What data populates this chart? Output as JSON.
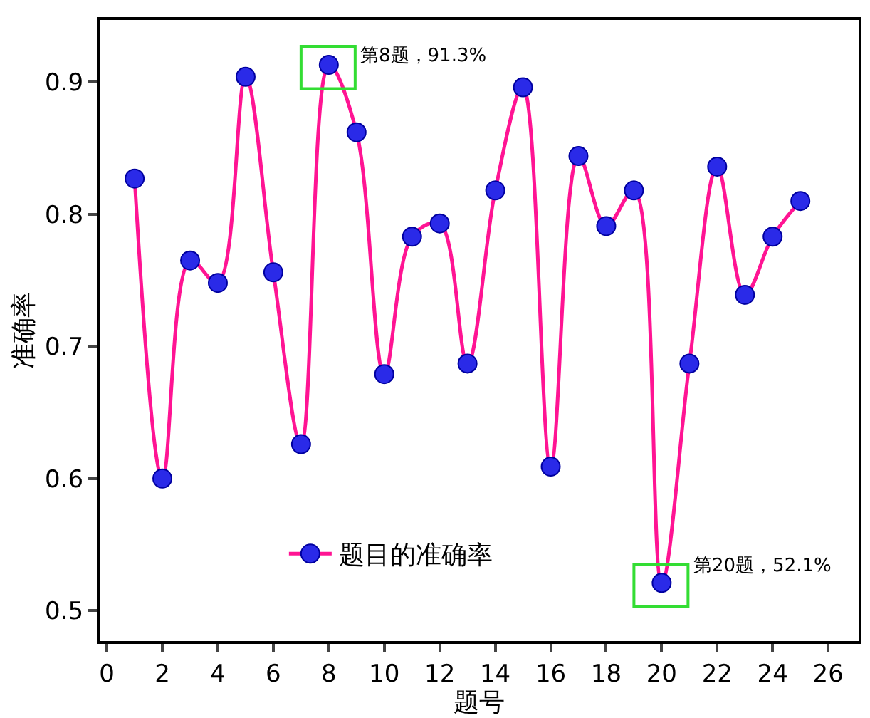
{
  "chart_data": {
    "type": "line",
    "xlabel": "题号",
    "ylabel": "准确率",
    "x": [
      1,
      2,
      3,
      4,
      5,
      6,
      7,
      8,
      9,
      10,
      11,
      12,
      13,
      14,
      15,
      16,
      17,
      18,
      19,
      20,
      21,
      22,
      23,
      24,
      25
    ],
    "series": [
      {
        "name": "题目的准确率",
        "color": "#ff1493",
        "values": [
          0.827,
          0.6,
          0.765,
          0.748,
          0.904,
          0.756,
          0.626,
          0.913,
          0.862,
          0.679,
          0.783,
          0.793,
          0.687,
          0.818,
          0.896,
          0.609,
          0.844,
          0.791,
          0.818,
          0.521,
          0.687,
          0.836,
          0.739,
          0.783,
          0.81
        ]
      }
    ],
    "annotations": [
      {
        "text": "第8题，91.3%",
        "x": 8,
        "y": 0.913
      },
      {
        "text": "第20题，52.1%",
        "x": 20,
        "y": 0.521
      }
    ],
    "xlim": [
      -0.26,
      27.1
    ],
    "ylim": [
      0.477,
      0.947
    ],
    "xticks": [
      0,
      2,
      4,
      6,
      8,
      10,
      12,
      14,
      16,
      18,
      20,
      22,
      24,
      26
    ],
    "yticks": [
      0.5,
      0.6,
      0.7,
      0.8,
      0.9
    ],
    "legend": "bottom",
    "marker": "circle",
    "line_style": "solid"
  }
}
